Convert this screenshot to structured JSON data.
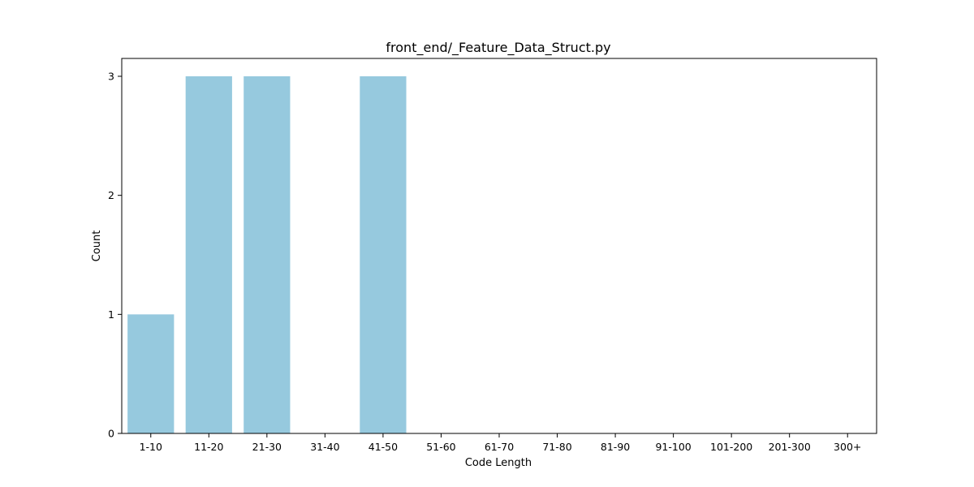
{
  "chart_data": {
    "type": "bar",
    "title": "front_end/_Feature_Data_Struct.py",
    "xlabel": "Code Length",
    "ylabel": "Count",
    "categories": [
      "1-10",
      "11-20",
      "21-30",
      "31-40",
      "41-50",
      "51-60",
      "61-70",
      "71-80",
      "81-90",
      "91-100",
      "101-200",
      "201-300",
      "300+"
    ],
    "values": [
      1,
      3,
      3,
      0,
      3,
      0,
      0,
      0,
      0,
      0,
      0,
      0,
      0
    ],
    "yticks": [
      0,
      1,
      2,
      3
    ],
    "ylim": [
      0,
      3.15
    ],
    "grid": false,
    "bar_color": "#96c9de"
  }
}
